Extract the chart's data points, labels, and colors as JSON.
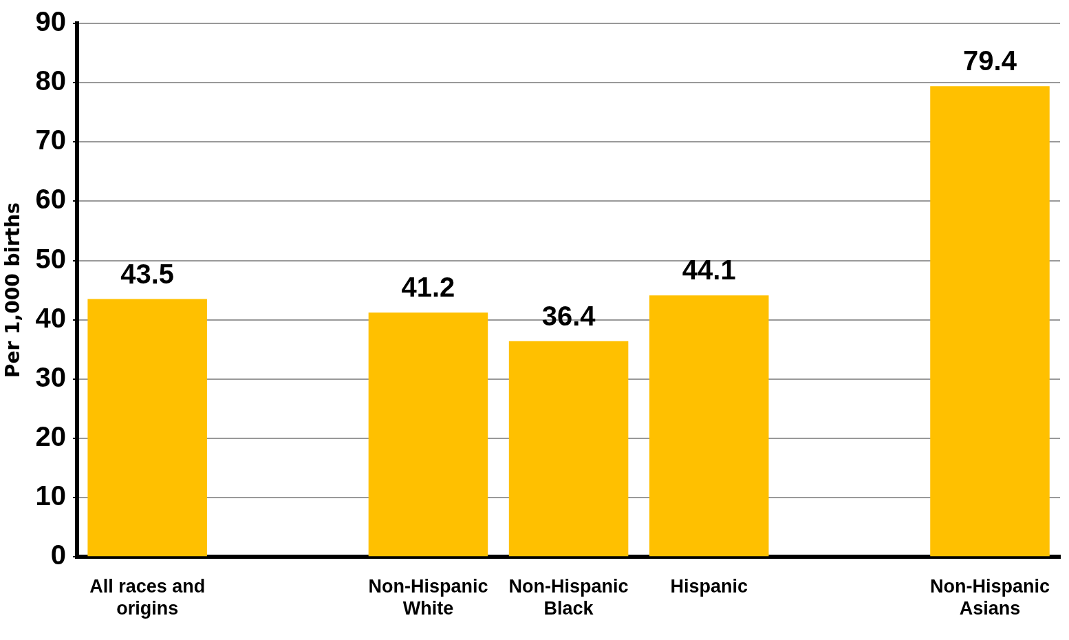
{
  "chart_data": {
    "type": "bar",
    "ylabel": "Per 1,000 births",
    "categories": [
      "All races and origins",
      null,
      "Non-Hispanic White",
      "Non-Hispanic Black",
      "Hispanic",
      null,
      "Non-Hispanic Asians"
    ],
    "values": [
      43.5,
      null,
      41.2,
      36.4,
      44.1,
      null,
      79.4
    ],
    "color": "#ffc000",
    "ylim": [
      0,
      90
    ],
    "yticks": [
      0,
      10,
      20,
      30,
      40,
      50,
      60,
      70,
      80,
      90
    ],
    "grid": "y",
    "data_labels": true,
    "legend": false
  }
}
